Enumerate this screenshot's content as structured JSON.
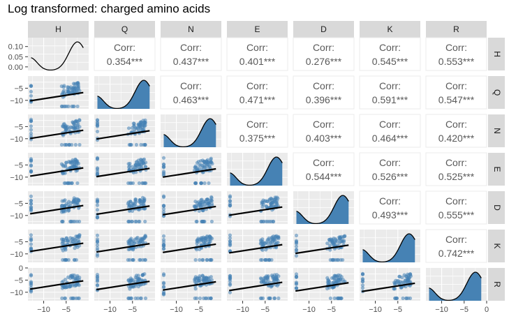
{
  "chart_data": {
    "type": "scatter",
    "title": "Log transformed: charged amino acids",
    "variables": [
      "H",
      "Q",
      "N",
      "E",
      "D",
      "K",
      "R"
    ],
    "colors": {
      "points": "#4682b4",
      "fit_line": "#000000",
      "density_fill": "#4682b4",
      "panel_bg": "#ebebeb",
      "strip_bg": "#d9d9d9",
      "corr_text": "#595959"
    },
    "corr_label": "Corr:",
    "correlations": {
      "H-Q": "0.354***",
      "H-N": "0.437***",
      "H-E": "0.401***",
      "H-D": "0.276***",
      "H-K": "0.545***",
      "H-R": "0.553***",
      "Q-N": "0.463***",
      "Q-E": "0.471***",
      "Q-D": "0.396***",
      "Q-K": "0.591***",
      "Q-R": "0.547***",
      "N-E": "0.375***",
      "N-D": "0.403***",
      "N-K": "0.464***",
      "N-R": "0.420***",
      "E-D": "0.544***",
      "E-K": "0.526***",
      "E-R": "0.525***",
      "D-K": "0.493***",
      "D-R": "0.555***",
      "K-R": "0.742***"
    },
    "x_axis": {
      "range": [
        -13.5,
        0
      ],
      "ticks": [
        -10,
        -5
      ],
      "last_col_range": [
        -13.5,
        0
      ],
      "last_col_ticks": [
        -10,
        -5,
        0
      ]
    },
    "y_axis": {
      "range": [
        -13.5,
        0
      ],
      "ticks": [
        -5,
        -10
      ],
      "first_row_ticks": [
        "0.10",
        "0.05",
        "0.00"
      ],
      "last_row_ticks": [
        0,
        -5,
        -10
      ]
    },
    "density_peaks": [
      -2.5,
      -2.5,
      -2.5,
      -2.5,
      -2.5,
      -2.5,
      -2.5
    ],
    "point_cluster": {
      "x_range": [
        -6,
        -2
      ],
      "y_range": [
        -8,
        -3
      ],
      "floor_value": -12.5
    },
    "fit_slope": 0.45,
    "grid": true
  }
}
